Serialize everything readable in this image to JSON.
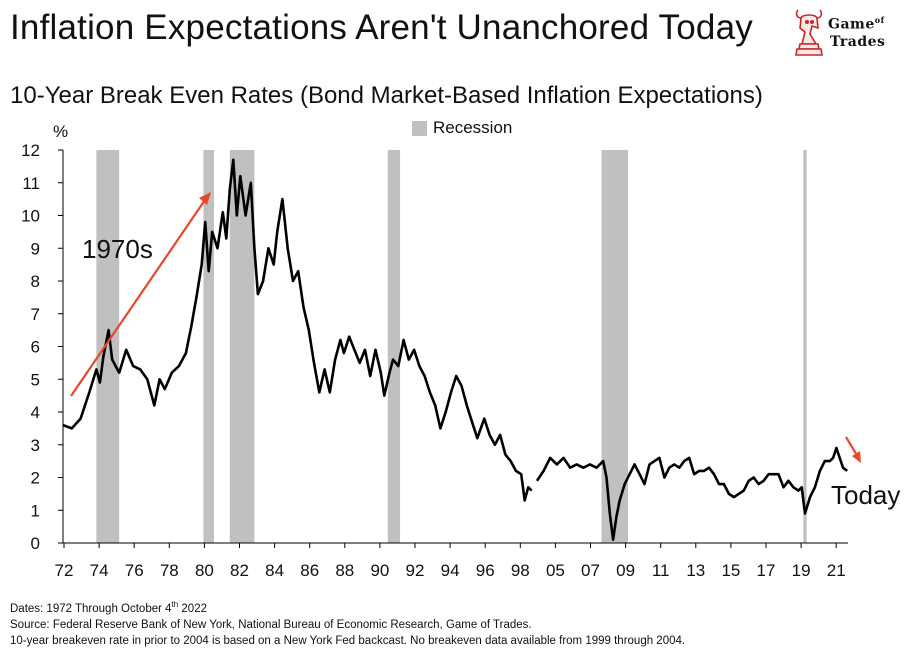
{
  "header": {
    "title": "Inflation Expectations Aren't Unanchored Today",
    "subtitle": "10-Year Break Even Rates (Bond Market-Based Inflation Expectations)"
  },
  "logo": {
    "line1_a": "Game",
    "line1_of": "of",
    "line2": "Trades",
    "icon": "bull-knight-chess-icon",
    "color": "#c62828"
  },
  "legend": {
    "recession_label": "Recession",
    "recession_color": "#c0c0c0"
  },
  "axis": {
    "unit": "%"
  },
  "annotations": {
    "era": "1970s",
    "today": "Today",
    "arrow_color": "#e8472b"
  },
  "footer": {
    "dates_prefix": "Dates: 1972 Through October 4",
    "dates_sup": "th",
    "dates_suffix": " 2022",
    "source": "Source: Federal Reserve Bank of New York, National Bureau of Economic Research, Game of Trades.",
    "note": "10-year breakeven rate in prior to 2004 is based on a New York Fed backcast. No breakeven data available from 1999 through 2004."
  },
  "chart_data": {
    "type": "line",
    "title": "10-Year Break Even Rates (Bond Market-Based Inflation Expectations)",
    "ylabel": "%",
    "ylim": [
      0,
      12
    ],
    "yticks": [
      0,
      1,
      2,
      3,
      4,
      5,
      6,
      7,
      8,
      9,
      10,
      11,
      12
    ],
    "xtick_labels": [
      "72",
      "74",
      "76",
      "78",
      "80",
      "82",
      "84",
      "86",
      "88",
      "90",
      "92",
      "94",
      "96",
      "98",
      "05",
      "07",
      "09",
      "11",
      "13",
      "15",
      "17",
      "19",
      "21"
    ],
    "grid": false,
    "legend_position": "top-center",
    "recessions": [
      [
        1973.9,
        1975.2
      ],
      [
        1980.0,
        1980.6
      ],
      [
        1981.5,
        1982.9
      ],
      [
        1990.5,
        1991.2
      ],
      [
        2007.9,
        2009.5
      ],
      [
        2020.1,
        2020.3
      ]
    ],
    "series": [
      {
        "color": "#000000",
        "points": [
          [
            1972.0,
            3.6
          ],
          [
            1972.5,
            3.5
          ],
          [
            1973.0,
            3.8
          ],
          [
            1973.5,
            4.6
          ],
          [
            1973.9,
            5.3
          ],
          [
            1974.1,
            4.9
          ],
          [
            1974.3,
            5.7
          ],
          [
            1974.6,
            6.5
          ],
          [
            1974.8,
            5.6
          ],
          [
            1975.2,
            5.2
          ],
          [
            1975.6,
            5.9
          ],
          [
            1976.0,
            5.4
          ],
          [
            1976.4,
            5.3
          ],
          [
            1976.8,
            5.0
          ],
          [
            1977.2,
            4.2
          ],
          [
            1977.5,
            5.0
          ],
          [
            1977.8,
            4.7
          ],
          [
            1978.2,
            5.2
          ],
          [
            1978.6,
            5.4
          ],
          [
            1979.0,
            5.8
          ],
          [
            1979.3,
            6.6
          ],
          [
            1979.6,
            7.5
          ],
          [
            1979.9,
            8.5
          ],
          [
            1980.1,
            9.8
          ],
          [
            1980.3,
            8.3
          ],
          [
            1980.5,
            9.5
          ],
          [
            1980.8,
            9.0
          ],
          [
            1981.1,
            10.1
          ],
          [
            1981.3,
            9.3
          ],
          [
            1981.5,
            10.8
          ],
          [
            1981.7,
            11.7
          ],
          [
            1981.9,
            10.0
          ],
          [
            1982.1,
            11.2
          ],
          [
            1982.4,
            10.0
          ],
          [
            1982.7,
            11.0
          ],
          [
            1982.9,
            9.0
          ],
          [
            1983.1,
            7.6
          ],
          [
            1983.4,
            8.0
          ],
          [
            1983.7,
            9.0
          ],
          [
            1984.0,
            8.5
          ],
          [
            1984.2,
            9.5
          ],
          [
            1984.5,
            10.5
          ],
          [
            1984.8,
            9.0
          ],
          [
            1985.1,
            8.0
          ],
          [
            1985.4,
            8.3
          ],
          [
            1985.7,
            7.2
          ],
          [
            1986.0,
            6.5
          ],
          [
            1986.3,
            5.5
          ],
          [
            1986.6,
            4.6
          ],
          [
            1986.9,
            5.3
          ],
          [
            1987.2,
            4.6
          ],
          [
            1987.5,
            5.6
          ],
          [
            1987.8,
            6.2
          ],
          [
            1988.0,
            5.8
          ],
          [
            1988.3,
            6.3
          ],
          [
            1988.6,
            5.9
          ],
          [
            1988.9,
            5.5
          ],
          [
            1989.2,
            5.9
          ],
          [
            1989.5,
            5.1
          ],
          [
            1989.8,
            5.9
          ],
          [
            1990.1,
            5.2
          ],
          [
            1990.3,
            4.5
          ],
          [
            1990.6,
            5.2
          ],
          [
            1990.8,
            5.6
          ],
          [
            1991.1,
            5.4
          ],
          [
            1991.4,
            6.2
          ],
          [
            1991.7,
            5.6
          ],
          [
            1992.0,
            5.9
          ],
          [
            1992.3,
            5.4
          ],
          [
            1992.6,
            5.1
          ],
          [
            1992.9,
            4.6
          ],
          [
            1993.2,
            4.2
          ],
          [
            1993.5,
            3.5
          ],
          [
            1993.8,
            4.0
          ],
          [
            1994.1,
            4.6
          ],
          [
            1994.4,
            5.1
          ],
          [
            1994.7,
            4.8
          ],
          [
            1995.0,
            4.2
          ],
          [
            1995.3,
            3.7
          ],
          [
            1995.6,
            3.2
          ],
          [
            1996.0,
            3.8
          ],
          [
            1996.3,
            3.3
          ],
          [
            1996.6,
            3.0
          ],
          [
            1996.9,
            3.3
          ],
          [
            1997.2,
            2.7
          ],
          [
            1997.5,
            2.5
          ],
          [
            1997.8,
            2.2
          ],
          [
            1998.1,
            2.1
          ],
          [
            1998.3,
            1.3
          ],
          [
            1998.5,
            1.7
          ],
          [
            1998.7,
            1.6
          ],
          [
            null,
            null
          ],
          [
            2004.0,
            1.9
          ],
          [
            2004.4,
            2.2
          ],
          [
            2004.8,
            2.6
          ],
          [
            2005.2,
            2.4
          ],
          [
            2005.6,
            2.6
          ],
          [
            2006.0,
            2.3
          ],
          [
            2006.4,
            2.4
          ],
          [
            2006.8,
            2.3
          ],
          [
            2007.2,
            2.4
          ],
          [
            2007.6,
            2.3
          ],
          [
            2008.0,
            2.5
          ],
          [
            2008.2,
            2.0
          ],
          [
            2008.4,
            0.9
          ],
          [
            2008.6,
            0.1
          ],
          [
            2008.8,
            0.8
          ],
          [
            2009.0,
            1.3
          ],
          [
            2009.3,
            1.8
          ],
          [
            2009.6,
            2.1
          ],
          [
            2009.9,
            2.4
          ],
          [
            2010.2,
            2.1
          ],
          [
            2010.5,
            1.8
          ],
          [
            2010.8,
            2.4
          ],
          [
            2011.1,
            2.5
          ],
          [
            2011.4,
            2.6
          ],
          [
            2011.7,
            2.0
          ],
          [
            2012.0,
            2.3
          ],
          [
            2012.3,
            2.4
          ],
          [
            2012.6,
            2.3
          ],
          [
            2012.9,
            2.5
          ],
          [
            2013.2,
            2.6
          ],
          [
            2013.5,
            2.1
          ],
          [
            2013.8,
            2.2
          ],
          [
            2014.1,
            2.2
          ],
          [
            2014.4,
            2.3
          ],
          [
            2014.7,
            2.1
          ],
          [
            2015.0,
            1.8
          ],
          [
            2015.3,
            1.8
          ],
          [
            2015.6,
            1.5
          ],
          [
            2015.9,
            1.4
          ],
          [
            2016.2,
            1.5
          ],
          [
            2016.5,
            1.6
          ],
          [
            2016.8,
            1.9
          ],
          [
            2017.1,
            2.0
          ],
          [
            2017.4,
            1.8
          ],
          [
            2017.7,
            1.9
          ],
          [
            2018.0,
            2.1
          ],
          [
            2018.3,
            2.1
          ],
          [
            2018.6,
            2.1
          ],
          [
            2018.9,
            1.7
          ],
          [
            2019.2,
            1.9
          ],
          [
            2019.5,
            1.7
          ],
          [
            2019.8,
            1.6
          ],
          [
            2020.0,
            1.7
          ],
          [
            2020.2,
            0.9
          ],
          [
            2020.5,
            1.4
          ],
          [
            2020.8,
            1.7
          ],
          [
            2021.1,
            2.2
          ],
          [
            2021.4,
            2.5
          ],
          [
            2021.7,
            2.5
          ],
          [
            2021.9,
            2.6
          ],
          [
            2022.1,
            2.9
          ],
          [
            2022.3,
            2.6
          ],
          [
            2022.5,
            2.3
          ],
          [
            2022.75,
            2.2
          ]
        ]
      }
    ]
  }
}
